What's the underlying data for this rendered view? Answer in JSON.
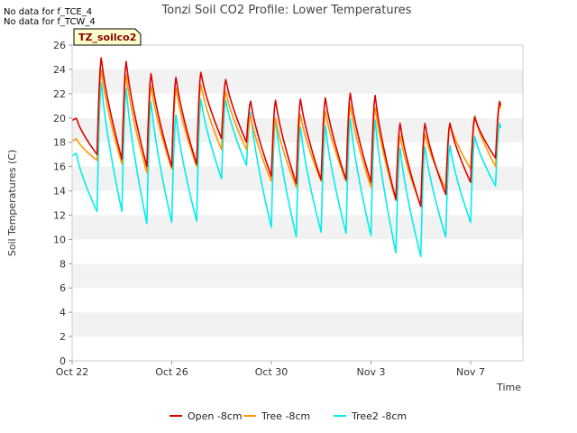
{
  "notices": [
    "No data for f_TCE_4",
    "No data for f_TCW_4"
  ],
  "chart_data": {
    "type": "line",
    "title": "Tonzi Soil CO2 Profile: Lower Temperatures",
    "xlabel": "Time",
    "ylabel": "Soil Temperatures (C)",
    "station_label": "TZ_soilco2",
    "x_ticks": [
      "Oct 22",
      "Oct 26",
      "Oct 30",
      "Nov 3",
      "Nov 7"
    ],
    "x_tick_days": [
      0,
      4,
      8,
      12,
      16
    ],
    "xlim": [
      0,
      18.1
    ],
    "ylim": [
      0,
      26
    ],
    "y_ticks": [
      0,
      2,
      4,
      6,
      8,
      10,
      12,
      14,
      16,
      18,
      20,
      22,
      24,
      26
    ],
    "grid": "horizontal bands",
    "legend_position": "bottom",
    "series": [
      {
        "name": "Open -8cm",
        "color": "#dd0000",
        "daily": [
          {
            "day": 0.0,
            "peak": 20.0,
            "min": 17.3
          },
          {
            "day": 1.0,
            "peak": 25.0,
            "min": 17.0
          },
          {
            "day": 2.0,
            "peak": 24.7,
            "min": 16.6
          },
          {
            "day": 3.0,
            "peak": 23.7,
            "min": 16.0
          },
          {
            "day": 4.0,
            "peak": 23.4,
            "min": 16.0
          },
          {
            "day": 5.0,
            "peak": 23.8,
            "min": 16.2
          },
          {
            "day": 6.0,
            "peak": 23.2,
            "min": 18.3
          },
          {
            "day": 7.0,
            "peak": 21.4,
            "min": 18.0
          },
          {
            "day": 8.0,
            "peak": 21.5,
            "min": 15.2
          },
          {
            "day": 9.0,
            "peak": 21.6,
            "min": 14.6
          },
          {
            "day": 10.0,
            "peak": 21.7,
            "min": 14.9
          },
          {
            "day": 11.0,
            "peak": 22.1,
            "min": 14.9
          },
          {
            "day": 12.0,
            "peak": 21.9,
            "min": 14.7
          },
          {
            "day": 13.0,
            "peak": 19.6,
            "min": 13.3
          },
          {
            "day": 14.0,
            "peak": 19.6,
            "min": 12.7
          },
          {
            "day": 15.0,
            "peak": 19.6,
            "min": 13.7
          },
          {
            "day": 16.0,
            "peak": 20.1,
            "min": 14.7
          },
          {
            "day": 17.0,
            "peak": 21.4,
            "min": 16.7
          }
        ]
      },
      {
        "name": "Tree -8cm",
        "color": "#ff9900",
        "daily": [
          {
            "day": 0.0,
            "peak": 18.3,
            "min": 17.0
          },
          {
            "day": 1.0,
            "peak": 24.0,
            "min": 16.5
          },
          {
            "day": 2.0,
            "peak": 23.6,
            "min": 16.2
          },
          {
            "day": 3.0,
            "peak": 22.7,
            "min": 15.5
          },
          {
            "day": 4.0,
            "peak": 22.5,
            "min": 15.8
          },
          {
            "day": 5.0,
            "peak": 22.8,
            "min": 16.0
          },
          {
            "day": 6.0,
            "peak": 22.2,
            "min": 17.4
          },
          {
            "day": 7.0,
            "peak": 20.2,
            "min": 17.4
          },
          {
            "day": 8.0,
            "peak": 20.0,
            "min": 14.8
          },
          {
            "day": 9.0,
            "peak": 20.3,
            "min": 14.3
          },
          {
            "day": 10.0,
            "peak": 20.6,
            "min": 14.8
          },
          {
            "day": 11.0,
            "peak": 21.1,
            "min": 14.8
          },
          {
            "day": 12.0,
            "peak": 20.9,
            "min": 14.3
          },
          {
            "day": 13.0,
            "peak": 18.6,
            "min": 13.2
          },
          {
            "day": 14.0,
            "peak": 18.7,
            "min": 12.8
          },
          {
            "day": 15.0,
            "peak": 19.6,
            "min": 14.2
          },
          {
            "day": 16.0,
            "peak": 20.2,
            "min": 15.8
          },
          {
            "day": 17.0,
            "peak": 21.2,
            "min": 16.0
          }
        ]
      },
      {
        "name": "Tree2 -8cm",
        "color": "#00eeee",
        "daily": [
          {
            "day": 0.0,
            "peak": 17.1,
            "min": 12.9
          },
          {
            "day": 1.0,
            "peak": 23.0,
            "min": 12.3
          },
          {
            "day": 2.0,
            "peak": 22.5,
            "min": 12.3
          },
          {
            "day": 3.0,
            "peak": 21.4,
            "min": 11.3
          },
          {
            "day": 4.0,
            "peak": 20.3,
            "min": 11.4
          },
          {
            "day": 5.0,
            "peak": 21.6,
            "min": 11.5
          },
          {
            "day": 6.0,
            "peak": 21.5,
            "min": 15.0
          },
          {
            "day": 7.0,
            "peak": 20.5,
            "min": 16.1
          },
          {
            "day": 8.0,
            "peak": 20.0,
            "min": 11.0
          },
          {
            "day": 9.0,
            "peak": 19.3,
            "min": 10.2
          },
          {
            "day": 10.0,
            "peak": 19.4,
            "min": 10.6
          },
          {
            "day": 11.0,
            "peak": 20.0,
            "min": 10.5
          },
          {
            "day": 12.0,
            "peak": 19.9,
            "min": 10.3
          },
          {
            "day": 13.0,
            "peak": 17.6,
            "min": 8.9
          },
          {
            "day": 14.0,
            "peak": 17.7,
            "min": 8.6
          },
          {
            "day": 15.0,
            "peak": 17.8,
            "min": 10.2
          },
          {
            "day": 16.0,
            "peak": 18.5,
            "min": 11.4
          },
          {
            "day": 17.0,
            "peak": 19.6,
            "min": 14.4
          }
        ]
      }
    ]
  }
}
